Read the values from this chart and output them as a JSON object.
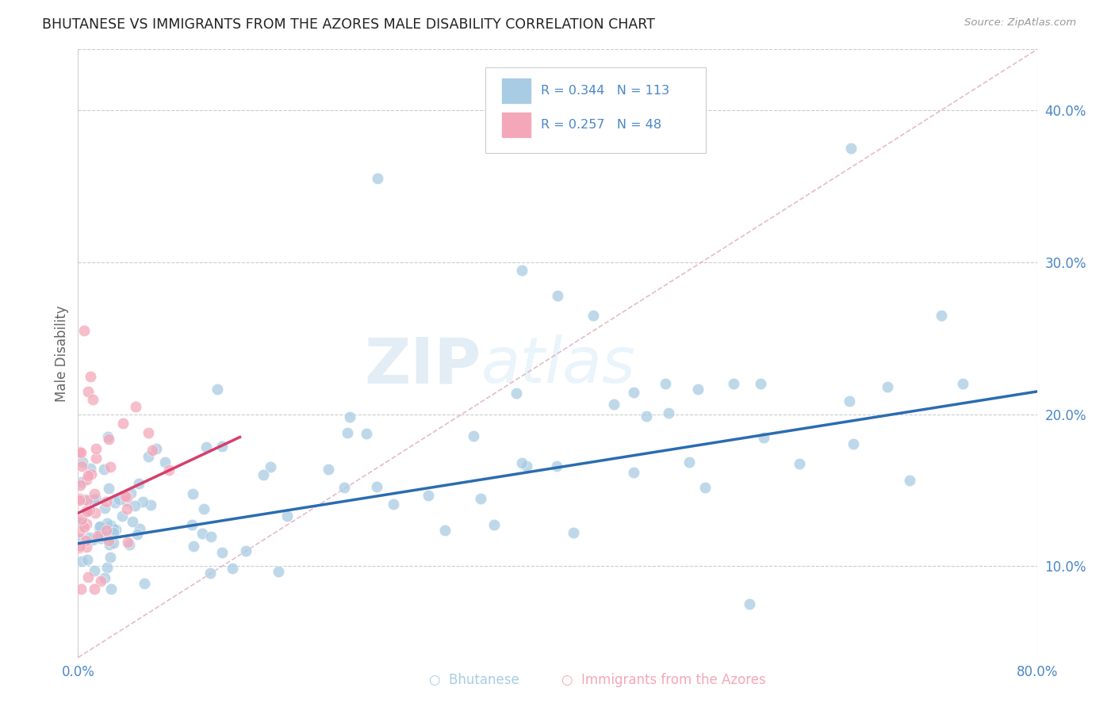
{
  "title": "BHUTANESE VS IMMIGRANTS FROM THE AZORES MALE DISABILITY CORRELATION CHART",
  "source": "Source: ZipAtlas.com",
  "ylabel": "Male Disability",
  "xmin": 0.0,
  "xmax": 0.8,
  "ymin": 0.04,
  "ymax": 0.44,
  "blue_color": "#a8cce4",
  "pink_color": "#f4a7b9",
  "blue_line_color": "#2b6cb0",
  "pink_line_color": "#d63f6b",
  "ref_line_color": "#e0b0c0",
  "legend_R1": "R = 0.344",
  "legend_N1": "N = 113",
  "legend_R2": "R = 0.257",
  "legend_N2": "N = 48",
  "label1": "Bhutanese",
  "label2": "Immigrants from the Azores",
  "axis_color": "#4a86c8",
  "grid_color": "#cccccc",
  "background_color": "#ffffff",
  "blue_regression_x0": 0.0,
  "blue_regression_y0": 0.115,
  "blue_regression_x1": 0.8,
  "blue_regression_y1": 0.215,
  "pink_regression_x0": 0.0,
  "pink_regression_y0": 0.135,
  "pink_regression_x1": 0.135,
  "pink_regression_y1": 0.185
}
